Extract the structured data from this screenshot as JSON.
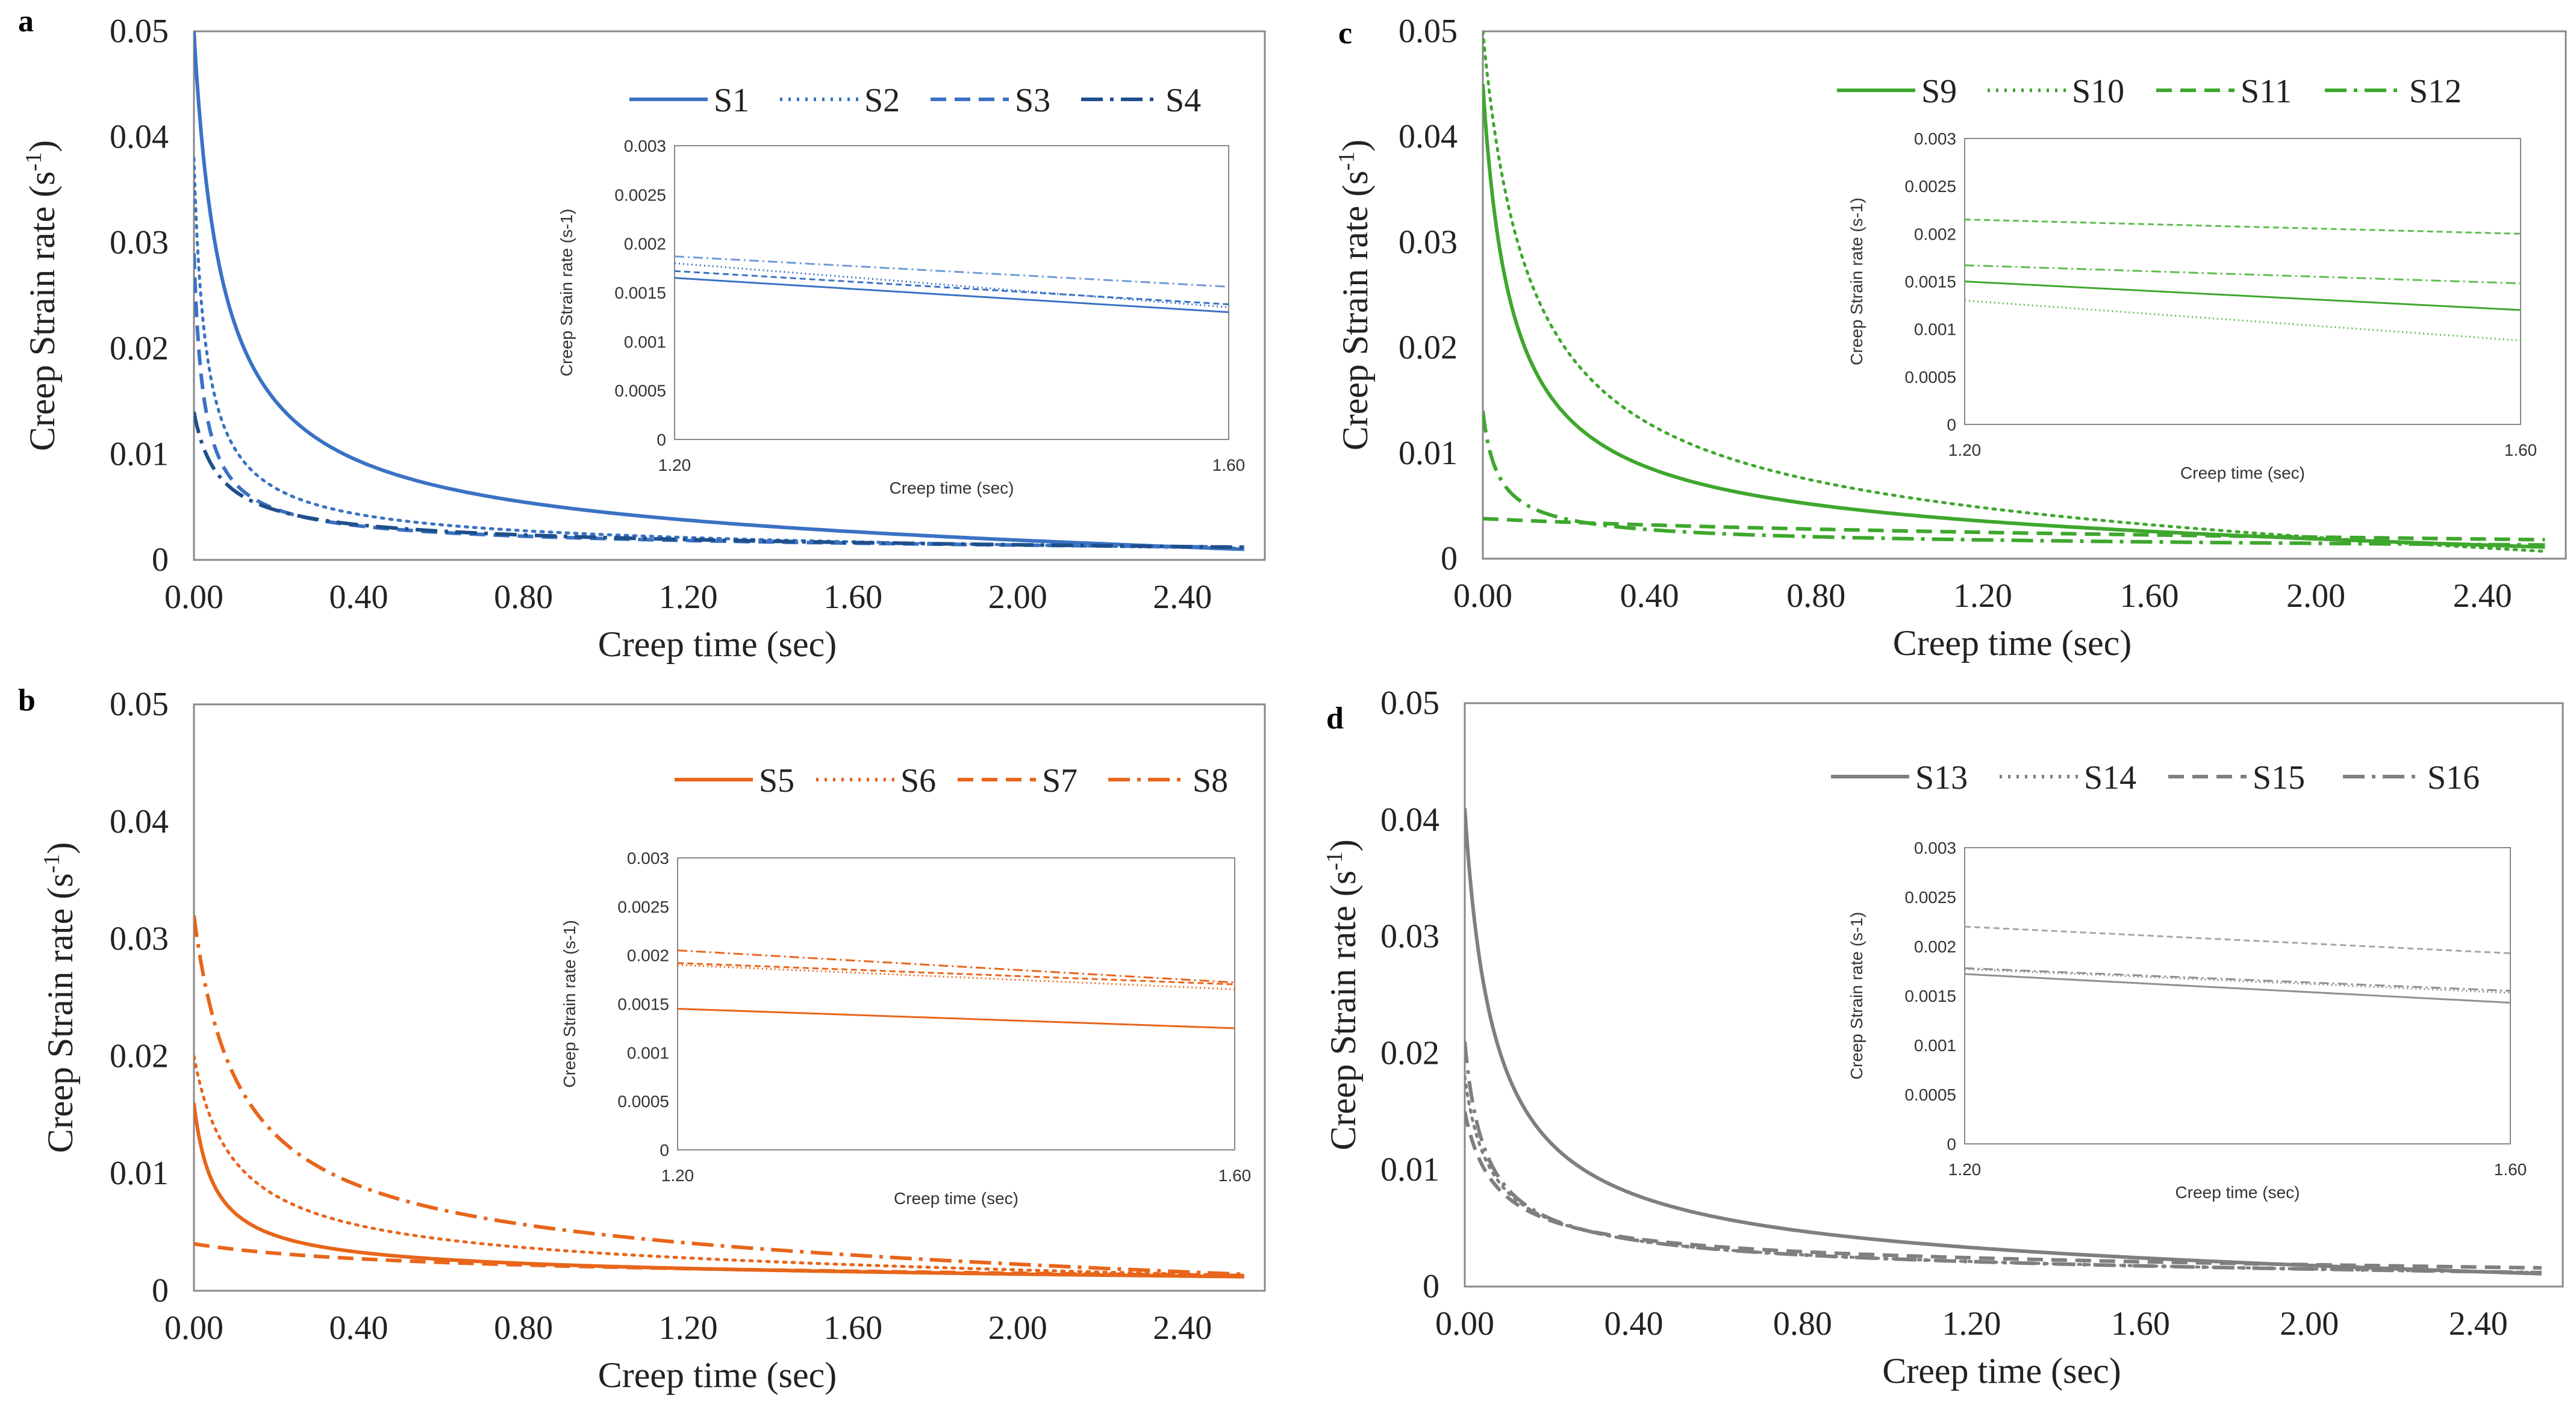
{
  "chart_data": [
    {
      "panel": "a",
      "type": "line",
      "color": "#3a72c4",
      "xlabel": "Creep time (sec)",
      "ylabel": "Creep Strain rate (s",
      "ylabel_sup": "-1",
      "ylabel_tail": ")",
      "xlim": [
        0,
        2.6
      ],
      "ylim": [
        0,
        0.05
      ],
      "x_ticks": [
        "0.00",
        "0.40",
        "0.80",
        "1.20",
        "1.60",
        "2.00",
        "2.40"
      ],
      "y_ticks": [
        "0",
        "0.01",
        "0.02",
        "0.03",
        "0.04",
        "0.05"
      ],
      "series": [
        {
          "name": "S1",
          "dash": "solid",
          "color": "#3a72c4",
          "start": 0.05,
          "end": 0.001,
          "tau": 0.06,
          "power": 0.85
        },
        {
          "name": "S2",
          "dash": "dotted",
          "color": "#3a72c4",
          "start": 0.038,
          "end": 0.0011,
          "tau": 0.025,
          "power": 0.85
        },
        {
          "name": "S3",
          "dash": "dashed",
          "color": "#3a72c4",
          "start": 0.029,
          "end": 0.0012,
          "tau": 0.02,
          "power": 0.85
        },
        {
          "name": "S4",
          "dash": "dashdot",
          "color": "#1f4f8c",
          "start": 0.014,
          "end": 0.0012,
          "tau": 0.05,
          "power": 0.8
        }
      ],
      "inset": {
        "xlabel": "Creep time (sec)",
        "ylabel": "Creep Strain rate (s-1)",
        "x_ticks": [
          "1.20",
          "1.60"
        ],
        "y_ticks": [
          "0",
          "0.0005",
          "0.001",
          "0.0015",
          "0.002",
          "0.0025",
          "0.003"
        ],
        "ylim": [
          0,
          0.003
        ],
        "lines": [
          {
            "name": "S1",
            "dash": "solid",
            "color": "#3a72c4",
            "y": [
              0.00165,
              0.0013
            ]
          },
          {
            "name": "S2",
            "dash": "dotted",
            "color": "#3a72c4",
            "y": [
              0.0018,
              0.00135
            ]
          },
          {
            "name": "S3",
            "dash": "dashed",
            "color": "#3a72c4",
            "y": [
              0.00172,
              0.00138
            ]
          },
          {
            "name": "S4",
            "dash": "dashdot",
            "color": "#6f9ad8",
            "y": [
              0.00187,
              0.00156
            ]
          }
        ]
      }
    },
    {
      "panel": "b",
      "type": "line",
      "color": "#e8651a",
      "xlabel": "Creep time (sec)",
      "ylabel": "Creep Strain rate (s",
      "ylabel_sup": "-1",
      "ylabel_tail": ")",
      "xlim": [
        0,
        2.6
      ],
      "ylim": [
        0,
        0.05
      ],
      "x_ticks": [
        "0.00",
        "0.40",
        "0.80",
        "1.20",
        "1.60",
        "2.00",
        "2.40"
      ],
      "y_ticks": [
        "0",
        "0.01",
        "0.02",
        "0.03",
        "0.04",
        "0.05"
      ],
      "series": [
        {
          "name": "S5",
          "dash": "solid",
          "color": "#e8651a",
          "start": 0.016,
          "end": 0.0012,
          "tau": 0.04,
          "power": 0.8
        },
        {
          "name": "S6",
          "dash": "dotted",
          "color": "#e8651a",
          "start": 0.02,
          "end": 0.0013,
          "tau": 0.08,
          "power": 0.8
        },
        {
          "name": "S7",
          "dash": "dashed",
          "color": "#e8651a",
          "start": 0.004,
          "end": 0.0013,
          "tau": 0.5,
          "power": 1.0
        },
        {
          "name": "S8",
          "dash": "dashdot",
          "color": "#e8651a",
          "start": 0.032,
          "end": 0.0014,
          "tau": 0.09,
          "power": 0.8
        }
      ],
      "inset": {
        "xlabel": "Creep time (sec)",
        "ylabel": "Creep Strain rate (s-1)",
        "x_ticks": [
          "1.20",
          "1.60"
        ],
        "y_ticks": [
          "0",
          "0.0005",
          "0.001",
          "0.0015",
          "0.002",
          "0.0025",
          "0.003"
        ],
        "ylim": [
          0,
          0.003
        ],
        "lines": [
          {
            "name": "S5",
            "dash": "solid",
            "color": "#e8651a",
            "y": [
              0.00145,
              0.00125
            ]
          },
          {
            "name": "S6",
            "dash": "dotted",
            "color": "#e8651a",
            "y": [
              0.0019,
              0.00165
            ]
          },
          {
            "name": "S7",
            "dash": "dashed",
            "color": "#e8651a",
            "y": [
              0.00192,
              0.0017
            ]
          },
          {
            "name": "S8",
            "dash": "dashdot",
            "color": "#e8651a",
            "y": [
              0.00205,
              0.00172
            ]
          }
        ]
      }
    },
    {
      "panel": "c",
      "type": "line",
      "color": "#3ea72d",
      "xlabel": "Creep time (sec)",
      "ylabel": "Creep Strain rate (s",
      "ylabel_sup": "-1",
      "ylabel_tail": ")",
      "xlim": [
        0,
        2.6
      ],
      "ylim": [
        0,
        0.05
      ],
      "x_ticks": [
        "0.00",
        "0.40",
        "0.80",
        "1.20",
        "1.60",
        "2.00",
        "2.40"
      ],
      "y_ticks": [
        "0",
        "0.01",
        "0.02",
        "0.03",
        "0.04",
        "0.05"
      ],
      "series": [
        {
          "name": "S9",
          "dash": "solid",
          "color": "#3ea72d",
          "start": 0.045,
          "end": 0.0011,
          "tau": 0.06,
          "power": 0.85
        },
        {
          "name": "S10",
          "dash": "dotted",
          "color": "#3ea72d",
          "start": 0.05,
          "end": 0.0007,
          "tau": 0.1,
          "power": 0.85
        },
        {
          "name": "S11",
          "dash": "dashed",
          "color": "#3ea72d",
          "start": 0.0038,
          "end": 0.0018,
          "tau": 1.2,
          "power": 1.0
        },
        {
          "name": "S12",
          "dash": "dashdot",
          "color": "#3ea72d",
          "start": 0.014,
          "end": 0.0013,
          "tau": 0.03,
          "power": 0.8
        }
      ],
      "inset": {
        "xlabel": "Creep time (sec)",
        "ylabel": "Creep Strain rate (s-1)",
        "x_ticks": [
          "1.20",
          "1.60"
        ],
        "y_ticks": [
          "0",
          "0.0005",
          "0.001",
          "0.0015",
          "0.002",
          "0.0025",
          "0.003"
        ],
        "ylim": [
          0,
          0.003
        ],
        "lines": [
          {
            "name": "S9",
            "dash": "solid",
            "color": "#3ea72d",
            "y": [
              0.0015,
              0.0012
            ]
          },
          {
            "name": "S10",
            "dash": "dotted",
            "color": "#5dbd4d",
            "y": [
              0.0013,
              0.00088
            ]
          },
          {
            "name": "S11",
            "dash": "dashed",
            "color": "#5dbd4d",
            "y": [
              0.00215,
              0.002
            ]
          },
          {
            "name": "S12",
            "dash": "dashdot",
            "color": "#5dbd4d",
            "y": [
              0.00167,
              0.00148
            ]
          }
        ]
      }
    },
    {
      "panel": "d",
      "type": "line",
      "color": "#7f7f7f",
      "xlabel": "Creep time (sec)",
      "ylabel": "Creep Strain rate (s",
      "ylabel_sup": "-1",
      "ylabel_tail": ")",
      "xlim": [
        0,
        2.6
      ],
      "ylim": [
        0,
        0.05
      ],
      "x_ticks": [
        "0.00",
        "0.40",
        "0.80",
        "1.20",
        "1.60",
        "2.00",
        "2.40"
      ],
      "y_ticks": [
        "0",
        "0.01",
        "0.02",
        "0.03",
        "0.04",
        "0.05"
      ],
      "series": [
        {
          "name": "S13",
          "dash": "solid",
          "color": "#7f7f7f",
          "start": 0.041,
          "end": 0.0011,
          "tau": 0.06,
          "power": 0.85
        },
        {
          "name": "S14",
          "dash": "dotted",
          "color": "#7f7f7f",
          "start": 0.018,
          "end": 0.0012,
          "tau": 0.05,
          "power": 0.8
        },
        {
          "name": "S15",
          "dash": "dashed",
          "color": "#7f7f7f",
          "start": 0.015,
          "end": 0.0016,
          "tau": 0.06,
          "power": 0.8
        },
        {
          "name": "S16",
          "dash": "dashdot",
          "color": "#7f7f7f",
          "start": 0.021,
          "end": 0.0012,
          "tau": 0.04,
          "power": 0.8
        }
      ],
      "inset": {
        "xlabel": "Creep time (sec)",
        "ylabel": "Creep Strain rate (s-1)",
        "x_ticks": [
          "1.20",
          "1.60"
        ],
        "y_ticks": [
          "0",
          "0.0005",
          "0.001",
          "0.0015",
          "0.002",
          "0.0025",
          "0.003"
        ],
        "ylim": [
          0,
          0.003
        ],
        "lines": [
          {
            "name": "S13",
            "dash": "solid",
            "color": "#8f8f8f",
            "y": [
              0.00172,
              0.00143
            ]
          },
          {
            "name": "S14",
            "dash": "dotted",
            "color": "#8f8f8f",
            "y": [
              0.00177,
              0.00153
            ]
          },
          {
            "name": "S15",
            "dash": "dashed",
            "color": "#a6a6a6",
            "y": [
              0.0022,
              0.00193
            ]
          },
          {
            "name": "S16",
            "dash": "dashdot",
            "color": "#8f8f8f",
            "y": [
              0.00178,
              0.00155
            ]
          }
        ]
      }
    }
  ]
}
